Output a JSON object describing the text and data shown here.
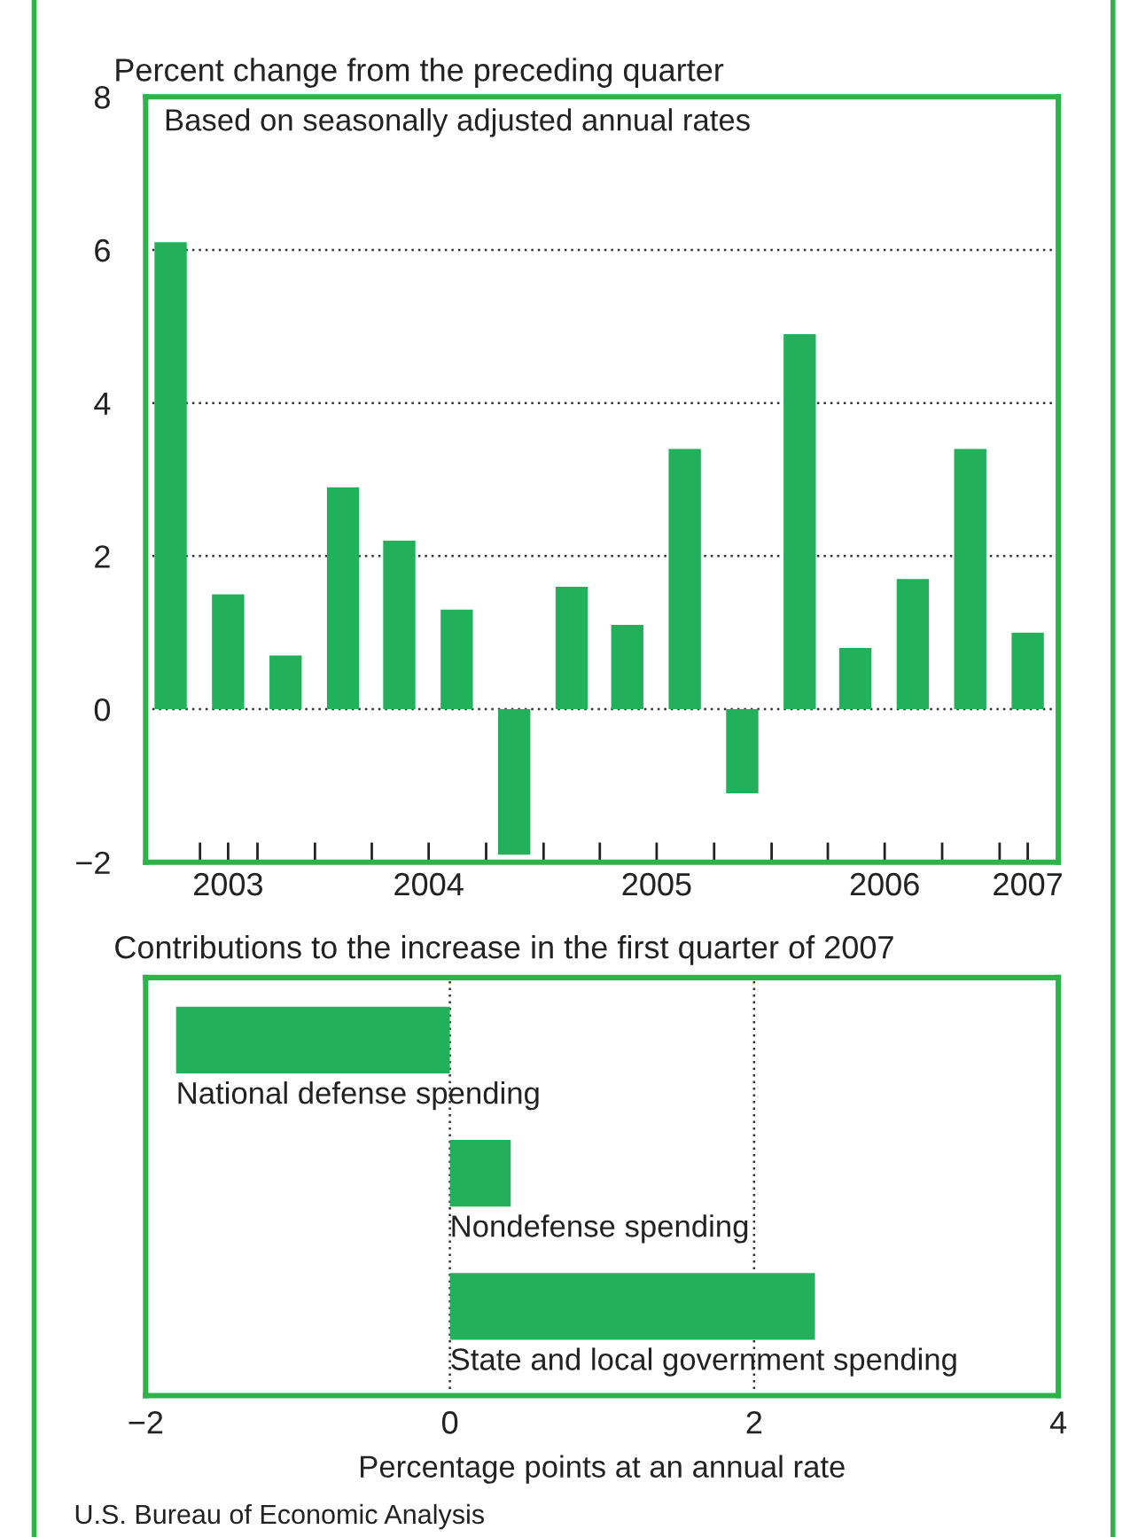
{
  "chart_data": [
    {
      "type": "bar",
      "title": "Percent change from the preceding quarter",
      "subtitle": "Based on seasonally adjusted annual rates",
      "x": [
        "2003-05-15",
        "2003-08-15",
        "2003-11-15",
        "2004-02-15",
        "2004-05-15",
        "2004-08-15",
        "2004-11-15",
        "2005-02-15",
        "2005-05-15",
        "2005-08-15",
        "2005-11-15",
        "2006-02-15",
        "2006-05-15",
        "2006-08-15",
        "2006-11-15",
        "2007-02-15"
      ],
      "values": [
        6.1,
        1.5,
        0.7,
        2.9,
        2.2,
        1.3,
        -1.9,
        1.6,
        1.1,
        3.4,
        -1.1,
        4.9,
        0.8,
        1.7,
        3.4,
        1.0
      ],
      "color": "#22b05a",
      "xlim": [
        "2003-04-05",
        "2007-04-05"
      ],
      "xticks": [
        {
          "value": "2003-07-01",
          "label": null
        },
        {
          "value": "2003-08-15",
          "label": "2003"
        },
        {
          "value": "2003-10-01",
          "label": null
        },
        {
          "value": "2004-01-01",
          "label": null
        },
        {
          "value": "2004-04-01",
          "label": null
        },
        {
          "value": "2004-07-01",
          "label": "2004"
        },
        {
          "value": "2004-10-01",
          "label": null
        },
        {
          "value": "2005-01-01",
          "label": null
        },
        {
          "value": "2005-04-01",
          "label": null
        },
        {
          "value": "2005-07-01",
          "label": "2005"
        },
        {
          "value": "2005-10-01",
          "label": null
        },
        {
          "value": "2006-01-01",
          "label": null
        },
        {
          "value": "2006-04-01",
          "label": null
        },
        {
          "value": "2006-07-01",
          "label": "2006"
        },
        {
          "value": "2006-10-01",
          "label": null
        },
        {
          "value": "2007-01-01",
          "label": null
        },
        {
          "value": "2007-02-15",
          "label": "2007"
        }
      ],
      "ylim": [
        -2,
        8
      ],
      "yticks": [
        {
          "value": -2,
          "label": "−2"
        },
        0,
        2,
        4,
        6,
        8
      ],
      "grid": "y"
    },
    {
      "type": "bar",
      "orientation": "horizontal",
      "title": "Contributions to the increase in the first quarter of 2007",
      "xlabel": "Percentage points at an annual rate",
      "categories": [
        "National defense spending",
        "Nondefense spending",
        "State and local government spending"
      ],
      "values": [
        -1.8,
        0.4,
        2.4
      ],
      "color": "#22b05a",
      "xlim": [
        -2,
        4
      ],
      "xticks": [
        {
          "value": -2,
          "label": "−2"
        },
        0,
        2,
        4
      ],
      "grid": "x",
      "annotations": [
        "U.S. Bureau of Economic Analysis"
      ]
    }
  ]
}
